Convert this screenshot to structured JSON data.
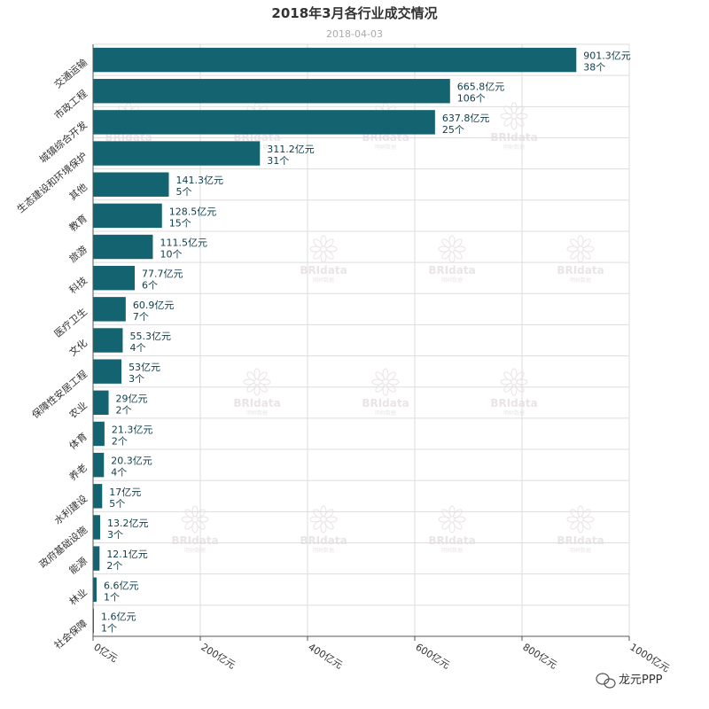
{
  "chart_data": {
    "type": "bar",
    "orientation": "horizontal",
    "title": "2018年3月各行业成交情况",
    "subtitle": "2018-04-03",
    "categories": [
      "交通运输",
      "市政工程",
      "城镇综合开发",
      "生态建设和环境保护",
      "其他",
      "教育",
      "旅游",
      "科技",
      "医疗卫生",
      "文化",
      "保障性安居工程",
      "农业",
      "体育",
      "养老",
      "水利建设",
      "政府基础设施",
      "能源",
      "林业",
      "社会保障"
    ],
    "values": [
      901.3,
      665.8,
      637.8,
      311.2,
      141.3,
      128.5,
      111.5,
      77.7,
      60.9,
      55.3,
      53,
      29,
      21.3,
      20.3,
      17,
      13.2,
      12.1,
      6.6,
      1.6
    ],
    "value_labels": [
      "901.3亿元",
      "665.8亿元",
      "637.8亿元",
      "311.2亿元",
      "141.3亿元",
      "128.5亿元",
      "111.5亿元",
      "77.7亿元",
      "60.9亿元",
      "55.3亿元",
      "53亿元",
      "29亿元",
      "21.3亿元",
      "20.3亿元",
      "17亿元",
      "13.2亿元",
      "12.1亿元",
      "6.6亿元",
      "1.6亿元"
    ],
    "counts": [
      "38个",
      "106个",
      "25个",
      "31个",
      "5个",
      "15个",
      "10个",
      "6个",
      "7个",
      "4个",
      "3个",
      "2个",
      "2个",
      "4个",
      "5个",
      "3个",
      "2个",
      "1个",
      "1个"
    ],
    "xlim": [
      0,
      1000
    ],
    "xticks": [
      0,
      200,
      400,
      600,
      800,
      1000
    ],
    "xtick_labels": [
      "0亿元",
      "200亿元",
      "400亿元",
      "600亿元",
      "800亿元",
      "1000亿元"
    ],
    "grid": true,
    "bar_color": "#136470"
  },
  "watermark": {
    "text": "BRIdata",
    "subtext": "明树数据"
  },
  "footer": {
    "text": "龙元PPP"
  }
}
